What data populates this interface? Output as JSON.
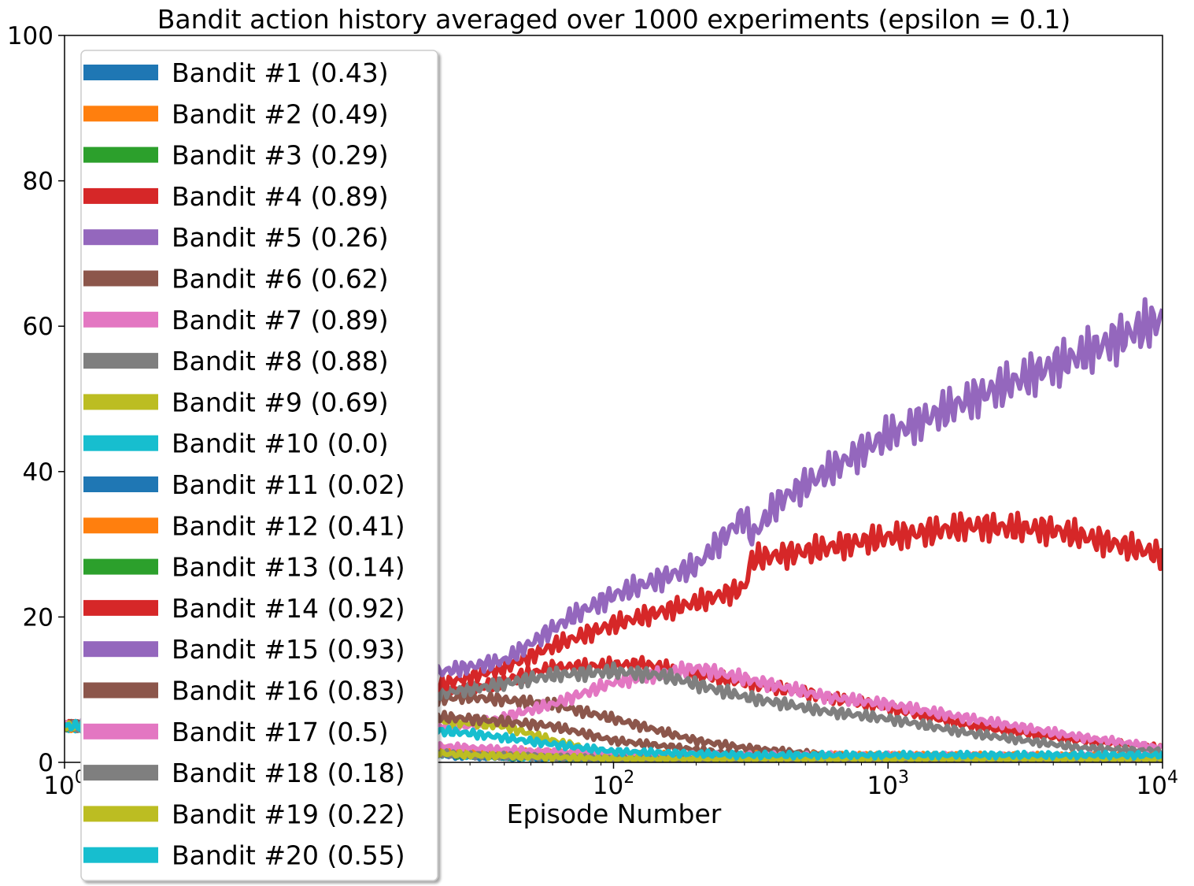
{
  "chart_data": {
    "type": "line",
    "title": "Bandit action history averaged over 1000 experiments (epsilon = 0.1)",
    "xlabel": "Episode Number",
    "ylabel": "",
    "xscale": "log",
    "xlim": [
      1,
      10000
    ],
    "ylim": [
      0,
      100
    ],
    "grid": false,
    "legend_position": "upper-left",
    "x_ticks": [
      {
        "value": 1,
        "base": "10",
        "exp": "0"
      },
      {
        "value": 10,
        "base": "10",
        "exp": "1"
      },
      {
        "value": 100,
        "base": "10",
        "exp": "2"
      },
      {
        "value": 1000,
        "base": "10",
        "exp": "3"
      },
      {
        "value": 10000,
        "base": "10",
        "exp": "4"
      }
    ],
    "y_ticks": [
      {
        "value": 0,
        "label": "0"
      },
      {
        "value": 20,
        "label": "20"
      },
      {
        "value": 40,
        "label": "40"
      },
      {
        "value": 60,
        "label": "60"
      },
      {
        "value": 80,
        "label": "80"
      },
      {
        "value": 100,
        "label": "100"
      }
    ],
    "series": [
      {
        "name": "Bandit #1 (0.43)",
        "color": "#1f77b4",
        "x": [
          1,
          10,
          30,
          100,
          10000
        ],
        "y": [
          5,
          3,
          1,
          0.5,
          0.5
        ]
      },
      {
        "name": "Bandit #2 (0.49)",
        "color": "#ff7f0e",
        "x": [
          1,
          10,
          30,
          100,
          10000
        ],
        "y": [
          5,
          3,
          1.5,
          1,
          0.8
        ]
      },
      {
        "name": "Bandit #3 (0.29)",
        "color": "#2ca02c",
        "x": [
          1,
          10,
          30,
          100,
          10000
        ],
        "y": [
          5,
          2.5,
          1,
          0.5,
          0.5
        ]
      },
      {
        "name": "Bandit #4 (0.89)",
        "color": "#d62728",
        "x": [
          1,
          30,
          60,
          130,
          200,
          300,
          600,
          1000,
          2000,
          5000,
          10000
        ],
        "y": [
          5,
          10,
          13,
          13.5,
          12,
          11,
          9,
          7.5,
          5,
          3,
          2
        ]
      },
      {
        "name": "Bandit #5 (0.26)",
        "color": "#9467bd",
        "x": [
          1,
          10,
          30,
          100,
          10000
        ],
        "y": [
          5,
          2,
          1,
          0.5,
          0.5
        ]
      },
      {
        "name": "Bandit #6 (0.62)",
        "color": "#8c564b",
        "x": [
          1,
          10,
          30,
          60,
          100,
          200,
          300,
          600,
          1000,
          10000
        ],
        "y": [
          5,
          8,
          9,
          8,
          6,
          3,
          2,
          1,
          0.5,
          0.5
        ]
      },
      {
        "name": "Bandit #7 (0.89)",
        "color": "#e377c2",
        "x": [
          1,
          30,
          60,
          100,
          200,
          600,
          1000,
          2000,
          5000,
          10000
        ],
        "y": [
          5,
          5,
          8,
          11,
          13,
          9,
          8,
          6,
          3.5,
          2
        ]
      },
      {
        "name": "Bandit #8 (0.88)",
        "color": "#7f7f7f",
        "x": [
          1,
          30,
          60,
          100,
          150,
          300,
          600,
          1000,
          2000,
          5000,
          10000
        ],
        "y": [
          5,
          10,
          12,
          12.5,
          12,
          9,
          7,
          6,
          4,
          2,
          1.5
        ]
      },
      {
        "name": "Bandit #9 (0.69)",
        "color": "#bcbd22",
        "x": [
          1,
          10,
          20,
          40,
          60,
          100,
          10000
        ],
        "y": [
          5,
          8,
          6,
          5,
          3,
          1,
          0.5
        ]
      },
      {
        "name": "Bandit #10 (0.0)",
        "color": "#17becf",
        "x": [
          1,
          10,
          30,
          100,
          10000
        ],
        "y": [
          5,
          2,
          1,
          0.5,
          0.5
        ]
      },
      {
        "name": "Bandit #11 (0.02)",
        "color": "#1f77b4",
        "x": [
          1,
          10,
          30,
          100,
          10000
        ],
        "y": [
          5,
          2,
          0.8,
          0.5,
          0.5
        ]
      },
      {
        "name": "Bandit #12 (0.41)",
        "color": "#ff7f0e",
        "x": [
          1,
          10,
          30,
          100,
          10000
        ],
        "y": [
          5,
          3,
          1.5,
          1,
          0.8
        ]
      },
      {
        "name": "Bandit #13 (0.14)",
        "color": "#2ca02c",
        "x": [
          1,
          10,
          30,
          100,
          10000
        ],
        "y": [
          5,
          2,
          1,
          0.5,
          0.5
        ]
      },
      {
        "name": "Bandit #14 (0.92)",
        "color": "#d62728",
        "x": [
          1,
          20,
          40,
          60,
          100,
          200,
          300,
          320,
          500,
          1000,
          2000,
          4000,
          6000,
          10000
        ],
        "y": [
          5,
          10,
          13,
          16,
          19,
          22,
          24,
          28,
          29,
          31,
          32.5,
          32,
          30.5,
          28.5
        ]
      },
      {
        "name": "Bandit #15 (0.93)",
        "color": "#9467bd",
        "x": [
          1,
          20,
          40,
          70,
          100,
          200,
          300,
          320,
          400,
          1000,
          2000,
          5000,
          10000
        ],
        "y": [
          5,
          12,
          14,
          20,
          23,
          27,
          34,
          31,
          36,
          45,
          50,
          56,
          61
        ]
      },
      {
        "name": "Bandit #16 (0.83)",
        "color": "#8c564b",
        "x": [
          1,
          10,
          30,
          60,
          100,
          300,
          1000,
          10000
        ],
        "y": [
          5,
          7,
          6,
          5,
          3,
          1,
          0.5,
          0.5
        ]
      },
      {
        "name": "Bandit #17 (0.5)",
        "color": "#e377c2",
        "x": [
          1,
          10,
          30,
          100,
          10000
        ],
        "y": [
          5,
          3,
          2,
          1,
          0.8
        ]
      },
      {
        "name": "Bandit #18 (0.18)",
        "color": "#7f7f7f",
        "x": [
          1,
          10,
          30,
          100,
          10000
        ],
        "y": [
          5,
          2,
          1,
          0.5,
          0.5
        ]
      },
      {
        "name": "Bandit #19 (0.22)",
        "color": "#bcbd22",
        "x": [
          1,
          10,
          30,
          100,
          10000
        ],
        "y": [
          5,
          2,
          1,
          0.5,
          0.5
        ]
      },
      {
        "name": "Bandit #20 (0.55)",
        "color": "#17becf",
        "x": [
          1,
          10,
          20,
          30,
          60,
          100,
          300,
          1000,
          10000
        ],
        "y": [
          5,
          5,
          4.5,
          4,
          2.5,
          1.5,
          1,
          1,
          1
        ]
      }
    ]
  }
}
